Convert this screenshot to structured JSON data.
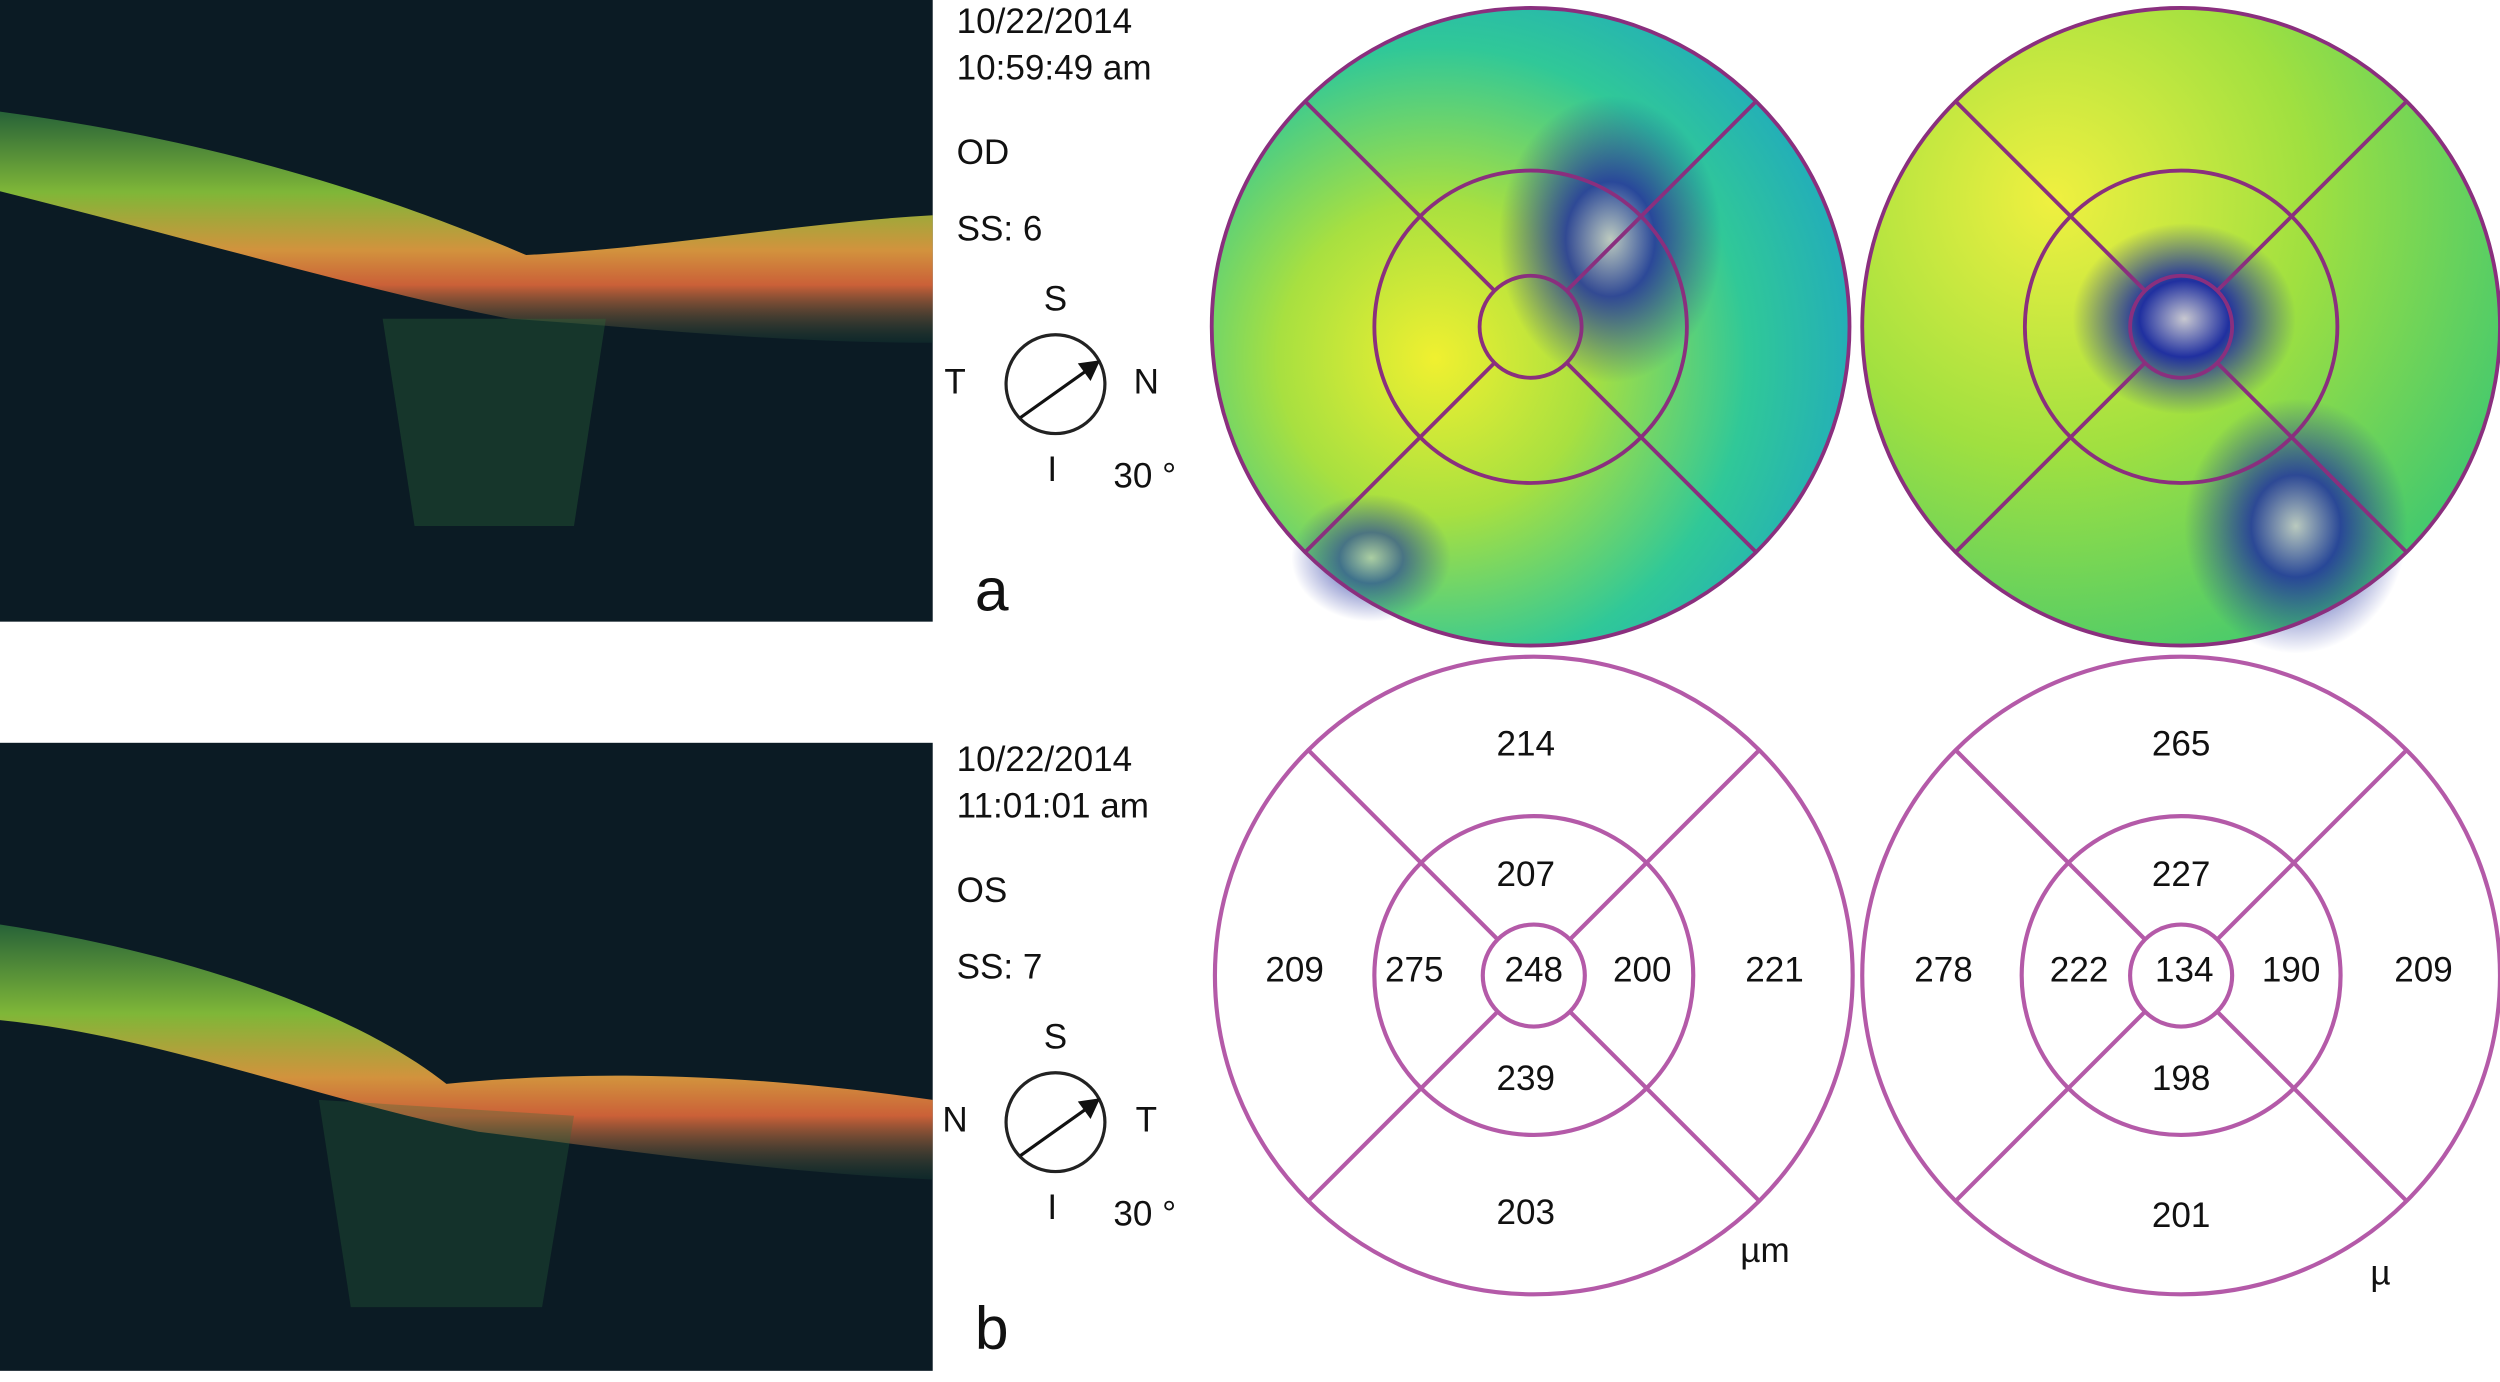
{
  "panels": [
    {
      "date": "10/22/2014",
      "time": "10:59:49 am",
      "eye": "OD",
      "signal": "SS: 6",
      "compass": {
        "top": "S",
        "left": "T",
        "right": "N",
        "bottom": "I"
      },
      "angle": "30 °",
      "label": "a"
    },
    {
      "date": "10/22/2014",
      "time": "11:01:01 am",
      "eye": "OS",
      "signal": "SS: 7",
      "compass": {
        "top": "S",
        "left": "N",
        "right": "T",
        "bottom": "I"
      },
      "angle": "30 °",
      "label": "b"
    }
  ],
  "grids": [
    {
      "center": "248",
      "inner": {
        "top": "207",
        "left": "275",
        "right": "200",
        "bottom": "239"
      },
      "outer": {
        "top": "214",
        "left": "209",
        "right": "221",
        "bottom": "203"
      },
      "unit": "µm"
    },
    {
      "center": "134",
      "inner": {
        "top": "227",
        "left": "222",
        "right": "190",
        "bottom": "198"
      },
      "outer": {
        "top": "265",
        "left": "278",
        "right": "209",
        "bottom": "201"
      },
      "unit": "µ"
    }
  ]
}
